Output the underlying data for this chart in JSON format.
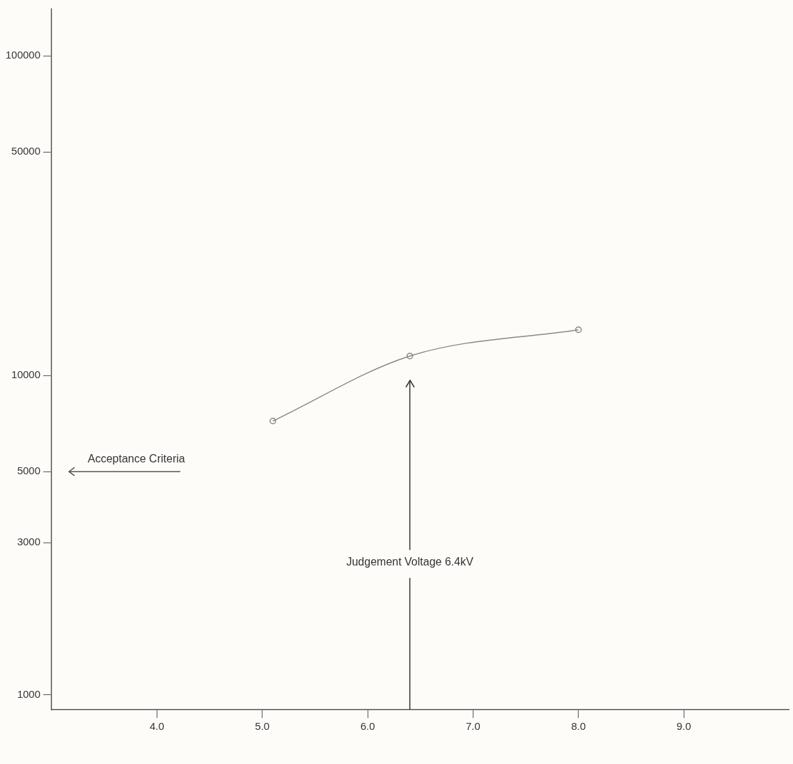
{
  "chart_data": {
    "type": "line",
    "x": [
      5.1,
      6.4,
      8.0
    ],
    "series": [
      {
        "color": "#888888",
        "values": [
          7200,
          11500,
          13900
        ]
      }
    ],
    "log": "y",
    "xlim": [
      3,
      10
    ],
    "xticks": [
      {
        "value": 4,
        "label": "4.0"
      },
      {
        "value": 5,
        "label": "5.0"
      },
      {
        "value": 6,
        "label": "6.0"
      },
      {
        "value": 7,
        "label": "7.0"
      },
      {
        "value": 8,
        "label": "8.0"
      },
      {
        "value": 9,
        "label": "9.0"
      }
    ],
    "ylim": [
      900,
      140000
    ],
    "yticks": [
      1000,
      3000,
      5000,
      10000,
      50000,
      100000
    ],
    "marker": "circle",
    "grid": false,
    "legend": false,
    "ref_lines": [
      {
        "axis": "y",
        "value": 5000,
        "label": "Acceptance Criteria",
        "color": "#555555"
      },
      {
        "axis": "x",
        "value": 6.4,
        "label": "Judgement Voltage 6.4kV",
        "color": "#333333"
      }
    ]
  }
}
